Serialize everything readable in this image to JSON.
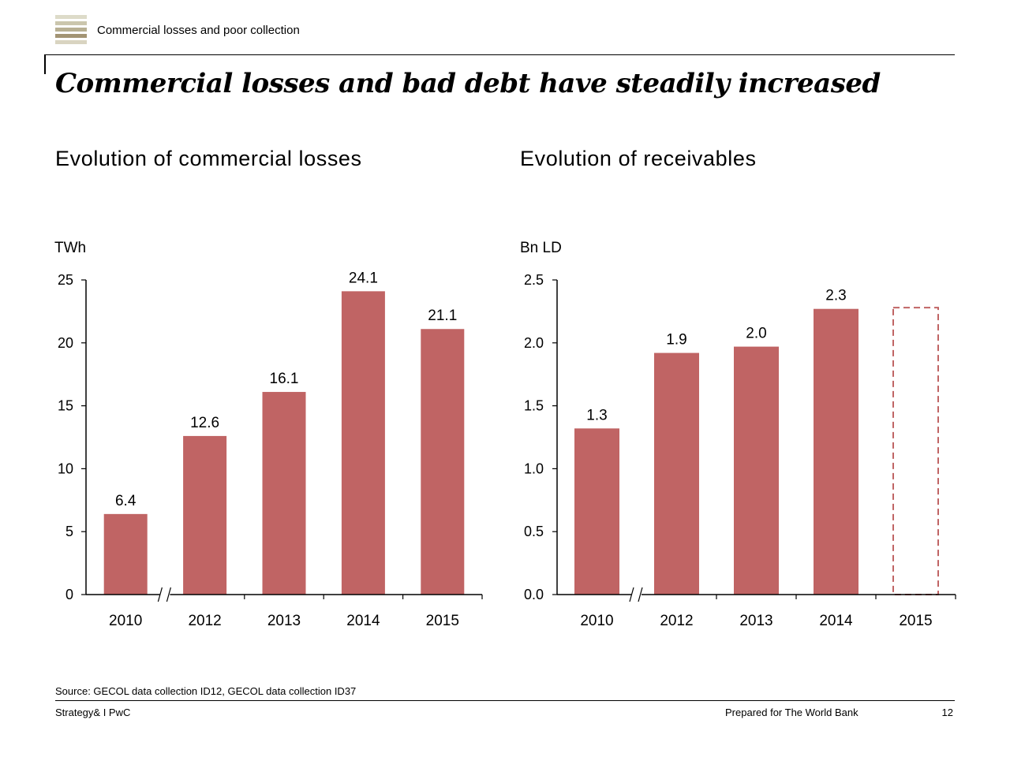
{
  "header": {
    "section_label": "Commercial losses and poor collection",
    "logo_colors": [
      "#dddbc9",
      "#cbc6ad",
      "#b8b093",
      "#a39474",
      "#d9d4c1"
    ]
  },
  "headline": "Commercial losses and bad debt have steadily increased",
  "colors": {
    "bar": "#c06464",
    "axis": "#000000"
  },
  "chart_data": [
    {
      "type": "bar",
      "title": "Evolution of commercial losses",
      "ylabel": "TWh",
      "categories": [
        "2010",
        "2012",
        "2013",
        "2014",
        "2015"
      ],
      "values": [
        6.4,
        12.6,
        16.1,
        24.1,
        21.1
      ],
      "value_labels": [
        "6.4",
        "12.6",
        "16.1",
        "24.1",
        "21.1"
      ],
      "ylim": [
        0,
        25
      ],
      "yticks": [
        0,
        5,
        10,
        15,
        20,
        25
      ],
      "ytick_labels": [
        "0",
        "5",
        "10",
        "15",
        "20",
        "25"
      ],
      "axis_break_after_index": 0,
      "grid": false
    },
    {
      "type": "bar",
      "title": "Evolution of receivables",
      "ylabel": "Bn LD",
      "categories": [
        "2010",
        "2012",
        "2013",
        "2014",
        "2015"
      ],
      "values": [
        1.32,
        1.92,
        1.97,
        2.27,
        2.28
      ],
      "value_labels": [
        "1.3",
        "1.9",
        "2.0",
        "2.3",
        ""
      ],
      "estimated": [
        false,
        false,
        false,
        false,
        true
      ],
      "ylim": [
        0,
        2.5
      ],
      "yticks": [
        0,
        0.5,
        1.0,
        1.5,
        2.0,
        2.5
      ],
      "ytick_labels": [
        "0.0",
        "0.5",
        "1.0",
        "1.5",
        "2.0",
        "2.5"
      ],
      "axis_break_after_index": 0,
      "grid": false
    }
  ],
  "footer": {
    "source": "Source: GECOL data collection ID12, GECOL data collection ID37",
    "left": "Strategy& I PwC",
    "middle": "Prepared for The World Bank",
    "page": "12"
  }
}
